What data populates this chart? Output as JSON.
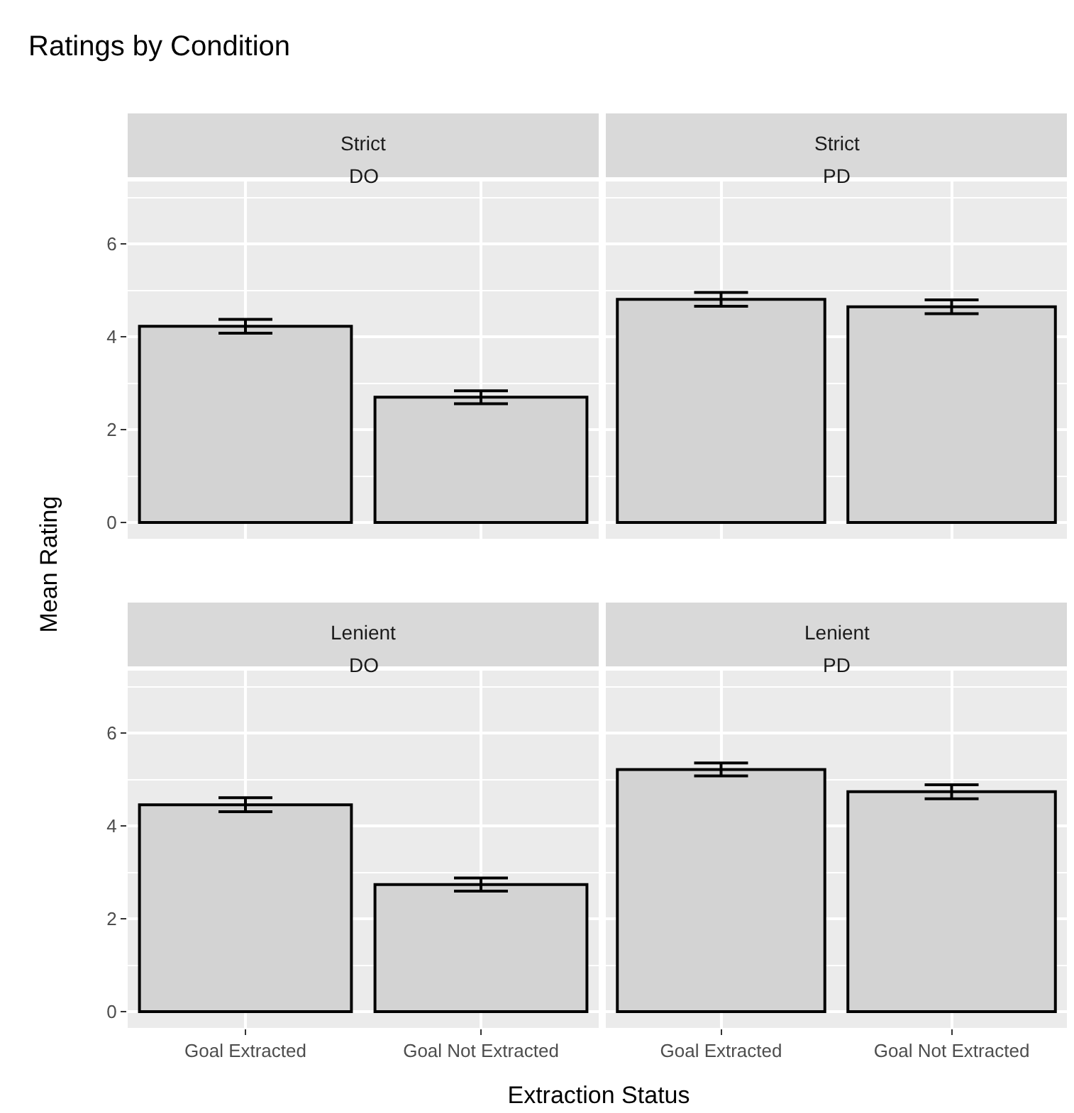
{
  "chart_data": [
    {
      "type": "bar",
      "title": "Strict",
      "subtitle": "DO",
      "annotations": [
        "Ratings by Condition"
      ],
      "ylabel": "Mean Rating",
      "categories": [
        "Goal Extracted",
        "Goal Not Extracted"
      ],
      "values": [
        4.23,
        2.7
      ],
      "errors": [
        0.15,
        0.14
      ],
      "color": "#d3d3d3",
      "ylim": [
        -0.35,
        7.35
      ],
      "yticks": [
        0,
        2,
        4,
        6
      ],
      "grid": true,
      "tick_labels": "y"
    },
    {
      "type": "bar",
      "title": "Strict",
      "subtitle": "PD",
      "categories": [
        "Goal Extracted",
        "Goal Not Extracted"
      ],
      "values": [
        4.81,
        4.65
      ],
      "errors": [
        0.15,
        0.15
      ],
      "color": "#d3d3d3",
      "ylim": [
        -0.35,
        7.35
      ],
      "yticks": [
        0,
        2,
        4,
        6
      ],
      "grid": true,
      "tick_labels": false
    },
    {
      "type": "bar",
      "title": "Lenient",
      "subtitle": "DO",
      "xlabel": "Extraction Status",
      "categories": [
        "Goal Extracted",
        "Goal Not Extracted"
      ],
      "values": [
        4.46,
        2.74
      ],
      "errors": [
        0.15,
        0.14
      ],
      "color": "#d3d3d3",
      "ylim": [
        -0.35,
        7.35
      ],
      "yticks": [
        0,
        2,
        4,
        6
      ],
      "grid": true
    },
    {
      "type": "bar",
      "title": "Lenient",
      "subtitle": "PD",
      "categories": [
        "Goal Extracted",
        "Goal Not Extracted"
      ],
      "values": [
        5.22,
        4.74
      ],
      "errors": [
        0.14,
        0.15
      ],
      "color": "#d3d3d3",
      "ylim": [
        -0.35,
        7.35
      ],
      "yticks": [
        0,
        2,
        4,
        6
      ],
      "grid": true,
      "tick_labels": "x"
    }
  ]
}
